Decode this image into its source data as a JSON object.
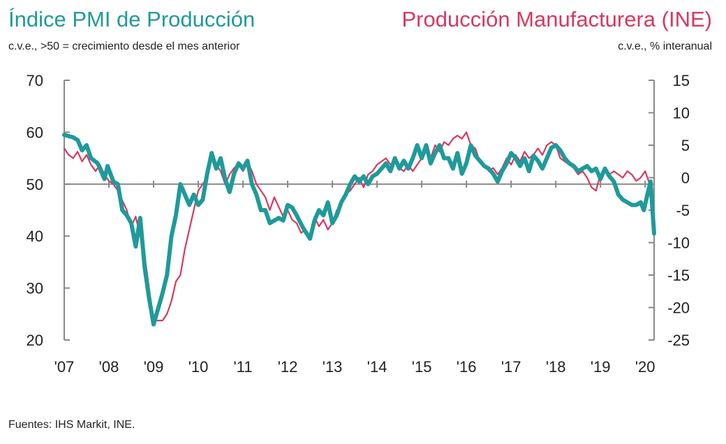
{
  "header": {
    "left_title": "Índice PMI de Producción",
    "left_subtitle": "c.v.e., >50 = crecimiento desde el mes anterior",
    "right_title": "Producción Manufacturera (INE)",
    "right_subtitle": "c.v.e., % interanual"
  },
  "footer": {
    "source": "Fuentes: IHS Markit, INE."
  },
  "colors": {
    "pmi": "#1f9a9a",
    "ine": "#d6395f",
    "axis": "#888888",
    "reference": "#888888"
  },
  "chart_data": {
    "type": "line",
    "title": "",
    "x_labels": [
      "'07",
      "'08",
      "'09",
      "'10",
      "'11",
      "'12",
      "'13",
      "'14",
      "'15",
      "'16",
      "'17",
      "'18",
      "'19",
      "'20"
    ],
    "x_range": [
      2007.0,
      2020.2
    ],
    "y_left": {
      "range": [
        20,
        70
      ],
      "ticks": [
        20,
        30,
        40,
        50,
        60,
        70
      ],
      "reference_line": 50
    },
    "y_right": {
      "range": [
        -25,
        15
      ],
      "ticks": [
        -25,
        -20,
        -15,
        -10,
        -5,
        0,
        5,
        10,
        15
      ]
    },
    "grid": false,
    "legend": "none",
    "series": [
      {
        "name": "Índice PMI de Producción",
        "axis": "left",
        "points": [
          [
            2007.0,
            59.5
          ],
          [
            2007.2,
            59.0
          ],
          [
            2007.3,
            58.5
          ],
          [
            2007.4,
            56.5
          ],
          [
            2007.5,
            57.5
          ],
          [
            2007.6,
            55.0
          ],
          [
            2007.75,
            54.0
          ],
          [
            2007.9,
            51.0
          ],
          [
            2007.97,
            53.5
          ],
          [
            2008.1,
            50.5
          ],
          [
            2008.2,
            50.0
          ],
          [
            2008.3,
            45.0
          ],
          [
            2008.4,
            44.0
          ],
          [
            2008.5,
            42.5
          ],
          [
            2008.6,
            38.0
          ],
          [
            2008.7,
            43.5
          ],
          [
            2008.8,
            34.0
          ],
          [
            2008.9,
            28.0
          ],
          [
            2009.0,
            23.0
          ],
          [
            2009.1,
            26.0
          ],
          [
            2009.2,
            29.0
          ],
          [
            2009.3,
            32.5
          ],
          [
            2009.4,
            40.0
          ],
          [
            2009.5,
            44.0
          ],
          [
            2009.6,
            50.0
          ],
          [
            2009.7,
            48.0
          ],
          [
            2009.8,
            46.0
          ],
          [
            2009.9,
            48.0
          ],
          [
            2010.0,
            46.0
          ],
          [
            2010.1,
            47.0
          ],
          [
            2010.2,
            52.0
          ],
          [
            2010.3,
            56.0
          ],
          [
            2010.4,
            53.0
          ],
          [
            2010.5,
            55.0
          ],
          [
            2010.6,
            51.0
          ],
          [
            2010.7,
            48.5
          ],
          [
            2010.8,
            52.0
          ],
          [
            2010.9,
            54.0
          ],
          [
            2011.0,
            53.0
          ],
          [
            2011.1,
            54.5
          ],
          [
            2011.2,
            50.0
          ],
          [
            2011.3,
            48.0
          ],
          [
            2011.4,
            45.0
          ],
          [
            2011.5,
            45.0
          ],
          [
            2011.6,
            42.5
          ],
          [
            2011.8,
            43.5
          ],
          [
            2011.9,
            43.0
          ],
          [
            2012.0,
            46.0
          ],
          [
            2012.1,
            45.5
          ],
          [
            2012.2,
            44.0
          ],
          [
            2012.35,
            41.5
          ],
          [
            2012.5,
            39.5
          ],
          [
            2012.6,
            43.0
          ],
          [
            2012.7,
            45.0
          ],
          [
            2012.8,
            44.0
          ],
          [
            2012.9,
            46.5
          ],
          [
            2013.0,
            42.5
          ],
          [
            2013.1,
            44.0
          ],
          [
            2013.2,
            46.5
          ],
          [
            2013.3,
            48.0
          ],
          [
            2013.4,
            50.0
          ],
          [
            2013.5,
            51.5
          ],
          [
            2013.6,
            50.5
          ],
          [
            2013.7,
            51.5
          ],
          [
            2013.8,
            50.0
          ],
          [
            2013.9,
            51.5
          ],
          [
            2014.0,
            52.0
          ],
          [
            2014.1,
            53.0
          ],
          [
            2014.2,
            54.0
          ],
          [
            2014.3,
            52.5
          ],
          [
            2014.4,
            55.0
          ],
          [
            2014.5,
            53.0
          ],
          [
            2014.6,
            54.5
          ],
          [
            2014.7,
            53.0
          ],
          [
            2014.8,
            55.0
          ],
          [
            2014.9,
            57.5
          ],
          [
            2015.0,
            55.0
          ],
          [
            2015.1,
            57.5
          ],
          [
            2015.2,
            54.0
          ],
          [
            2015.3,
            56.0
          ],
          [
            2015.4,
            57.5
          ],
          [
            2015.5,
            55.0
          ],
          [
            2015.6,
            55.0
          ],
          [
            2015.7,
            53.0
          ],
          [
            2015.8,
            56.0
          ],
          [
            2015.9,
            52.0
          ],
          [
            2016.0,
            54.0
          ],
          [
            2016.1,
            57.5
          ],
          [
            2016.2,
            55.5
          ],
          [
            2016.3,
            54.5
          ],
          [
            2016.4,
            53.5
          ],
          [
            2016.5,
            53.0
          ],
          [
            2016.6,
            52.0
          ],
          [
            2016.7,
            50.5
          ],
          [
            2016.8,
            52.5
          ],
          [
            2016.9,
            54.0
          ],
          [
            2017.0,
            56.0
          ],
          [
            2017.1,
            55.0
          ],
          [
            2017.2,
            53.5
          ],
          [
            2017.3,
            55.0
          ],
          [
            2017.4,
            52.5
          ],
          [
            2017.5,
            55.5
          ],
          [
            2017.6,
            54.5
          ],
          [
            2017.7,
            53.0
          ],
          [
            2017.8,
            55.0
          ],
          [
            2017.9,
            57.0
          ],
          [
            2018.0,
            57.5
          ],
          [
            2018.1,
            56.5
          ],
          [
            2018.2,
            55.0
          ],
          [
            2018.3,
            54.0
          ],
          [
            2018.4,
            53.5
          ],
          [
            2018.5,
            52.5
          ],
          [
            2018.6,
            53.0
          ],
          [
            2018.7,
            53.5
          ],
          [
            2018.8,
            52.5
          ],
          [
            2018.9,
            53.0
          ],
          [
            2019.0,
            51.0
          ],
          [
            2019.1,
            53.0
          ],
          [
            2019.2,
            51.5
          ],
          [
            2019.3,
            50.5
          ],
          [
            2019.4,
            48.0
          ],
          [
            2019.5,
            47.0
          ],
          [
            2019.6,
            46.5
          ],
          [
            2019.7,
            46.0
          ],
          [
            2019.8,
            46.0
          ],
          [
            2019.9,
            46.5
          ],
          [
            2019.97,
            45.0
          ],
          [
            2020.05,
            48.0
          ],
          [
            2020.12,
            50.5
          ],
          [
            2020.2,
            40.5
          ]
        ]
      },
      {
        "name": "Producción Manufacturera (INE)",
        "axis": "right",
        "points": [
          [
            2007.0,
            4.5
          ],
          [
            2007.1,
            3.5
          ],
          [
            2007.2,
            3.0
          ],
          [
            2007.3,
            4.0
          ],
          [
            2007.4,
            2.5
          ],
          [
            2007.5,
            3.5
          ],
          [
            2007.6,
            2.0
          ],
          [
            2007.7,
            1.0
          ],
          [
            2007.8,
            2.0
          ],
          [
            2007.9,
            0.5
          ],
          [
            2008.0,
            -0.5
          ],
          [
            2008.1,
            -1.0
          ],
          [
            2008.2,
            -2.0
          ],
          [
            2008.3,
            -3.5
          ],
          [
            2008.4,
            -5.0
          ],
          [
            2008.5,
            -7.5
          ],
          [
            2008.6,
            -6.0
          ],
          [
            2008.7,
            -9.0
          ],
          [
            2008.8,
            -12.0
          ],
          [
            2008.9,
            -17.0
          ],
          [
            2009.0,
            -22.0
          ],
          [
            2009.2,
            -22.0
          ],
          [
            2009.3,
            -21.0
          ],
          [
            2009.4,
            -19.0
          ],
          [
            2009.5,
            -16.0
          ],
          [
            2009.6,
            -15.0
          ],
          [
            2009.7,
            -11.0
          ],
          [
            2009.8,
            -8.0
          ],
          [
            2009.9,
            -5.0
          ],
          [
            2010.0,
            -2.0
          ],
          [
            2010.1,
            -1.0
          ],
          [
            2010.2,
            0.0
          ],
          [
            2010.3,
            3.0
          ],
          [
            2010.4,
            2.0
          ],
          [
            2010.5,
            1.0
          ],
          [
            2010.6,
            -1.0
          ],
          [
            2010.7,
            0.5
          ],
          [
            2010.8,
            1.5
          ],
          [
            2010.9,
            2.0
          ],
          [
            2011.0,
            1.0
          ],
          [
            2011.1,
            2.5
          ],
          [
            2011.2,
            1.0
          ],
          [
            2011.3,
            -1.0
          ],
          [
            2011.4,
            -2.0
          ],
          [
            2011.5,
            -3.0
          ],
          [
            2011.6,
            -5.0
          ],
          [
            2011.7,
            -3.0
          ],
          [
            2011.8,
            -4.5
          ],
          [
            2011.9,
            -6.0
          ],
          [
            2012.0,
            -5.0
          ],
          [
            2012.1,
            -6.5
          ],
          [
            2012.2,
            -7.0
          ],
          [
            2012.3,
            -8.5
          ],
          [
            2012.4,
            -8.0
          ],
          [
            2012.5,
            -9.0
          ],
          [
            2012.6,
            -6.0
          ],
          [
            2012.7,
            -7.5
          ],
          [
            2012.8,
            -6.5
          ],
          [
            2012.9,
            -8.0
          ],
          [
            2013.0,
            -7.0
          ],
          [
            2013.1,
            -5.0
          ],
          [
            2013.2,
            -4.0
          ],
          [
            2013.3,
            -2.5
          ],
          [
            2013.4,
            -2.0
          ],
          [
            2013.5,
            -1.0
          ],
          [
            2013.6,
            0.0
          ],
          [
            2013.7,
            -1.5
          ],
          [
            2013.8,
            0.5
          ],
          [
            2013.9,
            1.0
          ],
          [
            2014.0,
            2.0
          ],
          [
            2014.1,
            2.5
          ],
          [
            2014.2,
            3.0
          ],
          [
            2014.3,
            2.0
          ],
          [
            2014.4,
            2.5
          ],
          [
            2014.5,
            1.5
          ],
          [
            2014.6,
            1.0
          ],
          [
            2014.7,
            2.0
          ],
          [
            2014.8,
            1.0
          ],
          [
            2014.9,
            2.0
          ],
          [
            2015.0,
            3.0
          ],
          [
            2015.1,
            4.0
          ],
          [
            2015.2,
            3.0
          ],
          [
            2015.3,
            5.0
          ],
          [
            2015.4,
            4.0
          ],
          [
            2015.5,
            5.5
          ],
          [
            2015.6,
            5.0
          ],
          [
            2015.7,
            6.0
          ],
          [
            2015.8,
            6.5
          ],
          [
            2015.9,
            6.0
          ],
          [
            2016.0,
            7.0
          ],
          [
            2016.1,
            5.0
          ],
          [
            2016.2,
            4.5
          ],
          [
            2016.3,
            2.5
          ],
          [
            2016.4,
            2.0
          ],
          [
            2016.5,
            1.0
          ],
          [
            2016.6,
            1.5
          ],
          [
            2016.7,
            0.5
          ],
          [
            2016.8,
            1.5
          ],
          [
            2016.9,
            3.0
          ],
          [
            2017.0,
            2.0
          ],
          [
            2017.1,
            3.5
          ],
          [
            2017.2,
            2.5
          ],
          [
            2017.3,
            4.0
          ],
          [
            2017.4,
            3.0
          ],
          [
            2017.5,
            3.5
          ],
          [
            2017.6,
            4.5
          ],
          [
            2017.7,
            3.5
          ],
          [
            2017.8,
            5.0
          ],
          [
            2017.9,
            5.5
          ],
          [
            2018.0,
            5.0
          ],
          [
            2018.1,
            3.0
          ],
          [
            2018.2,
            2.5
          ],
          [
            2018.3,
            2.0
          ],
          [
            2018.4,
            1.5
          ],
          [
            2018.5,
            0.5
          ],
          [
            2018.6,
            1.0
          ],
          [
            2018.7,
            0.0
          ],
          [
            2018.8,
            -1.5
          ],
          [
            2018.9,
            -2.0
          ],
          [
            2019.0,
            0.5
          ],
          [
            2019.1,
            1.0
          ],
          [
            2019.2,
            0.5
          ],
          [
            2019.3,
            1.0
          ],
          [
            2019.4,
            0.5
          ],
          [
            2019.5,
            0.0
          ],
          [
            2019.6,
            1.0
          ],
          [
            2019.7,
            0.5
          ],
          [
            2019.8,
            -0.5
          ],
          [
            2019.9,
            0.0
          ],
          [
            2020.0,
            1.0
          ],
          [
            2020.1,
            -1.0
          ]
        ]
      }
    ]
  }
}
